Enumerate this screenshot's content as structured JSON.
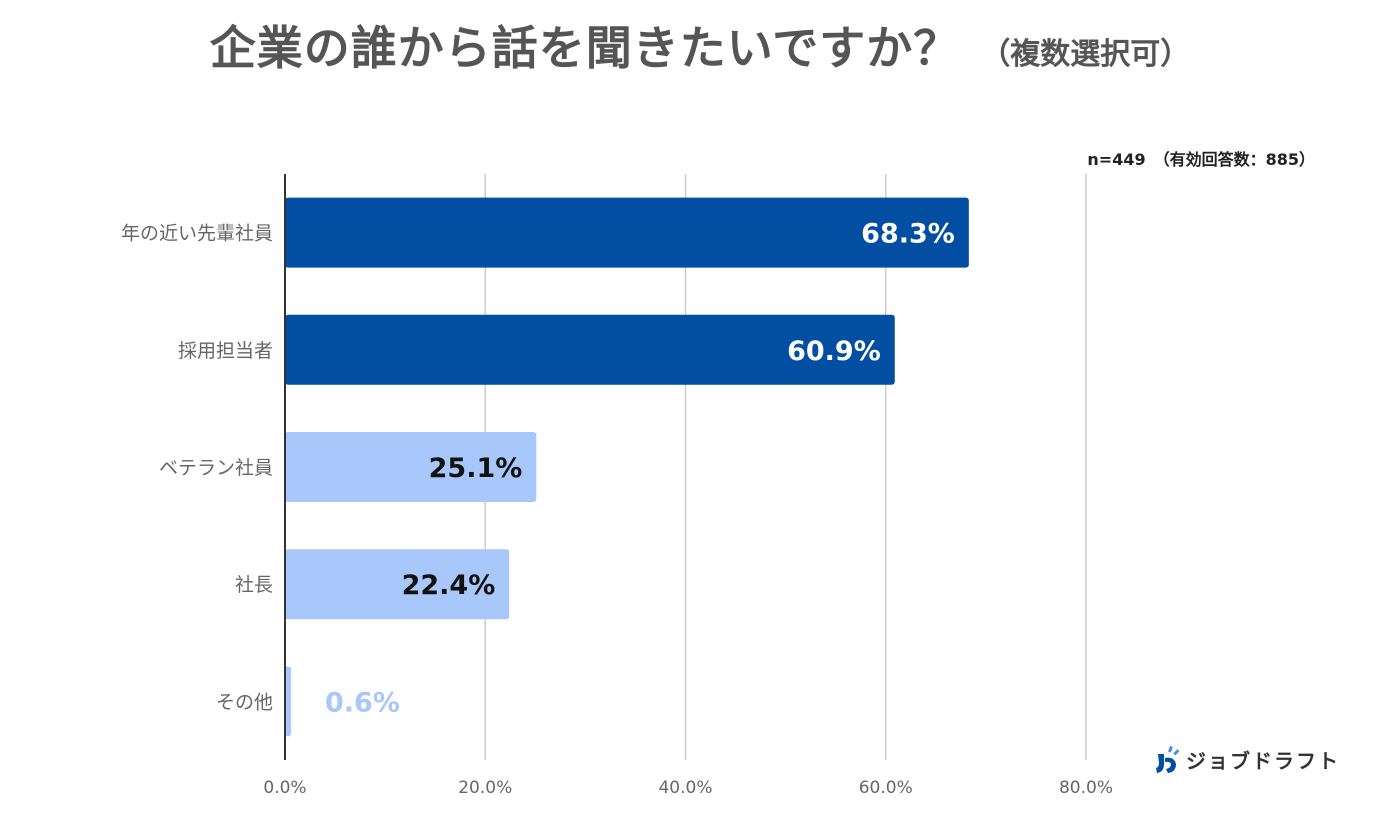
{
  "title": {
    "main": "企業の誰から話を聞きたいですか？",
    "sub": "（複数選択可）"
  },
  "sample_note": "n=449　（有効回答数：885）",
  "logo": {
    "icon": "job-draft-logo-icon",
    "text": "ジョブドラフト"
  },
  "colors": {
    "dark_bar": "#024ea2",
    "light_bar": "#a8c7fa",
    "grid": "#cccccc",
    "axis": "#333333",
    "tick_text": "#666666",
    "label_white": "#ffffff",
    "label_dark": "#111111",
    "label_light": "#a8c7fa"
  },
  "chart_data": {
    "type": "bar",
    "orientation": "horizontal",
    "categories": [
      "年の近い先輩社員",
      "採用担当者",
      "ベテラン社員",
      "社長",
      "その他"
    ],
    "values": [
      68.3,
      60.9,
      25.1,
      22.4,
      0.6
    ],
    "data_labels": [
      "68.3%",
      "60.9%",
      "25.1%",
      "22.4%",
      "0.6%"
    ],
    "xlim": [
      0,
      80
    ],
    "xticks": [
      0,
      20,
      40,
      60,
      80
    ],
    "xtick_labels": [
      "0.0%",
      "20.0%",
      "40.0%",
      "60.0%",
      "80.0%"
    ],
    "grid": true,
    "bar_styles": [
      "dark",
      "dark",
      "light",
      "light",
      "light"
    ]
  }
}
